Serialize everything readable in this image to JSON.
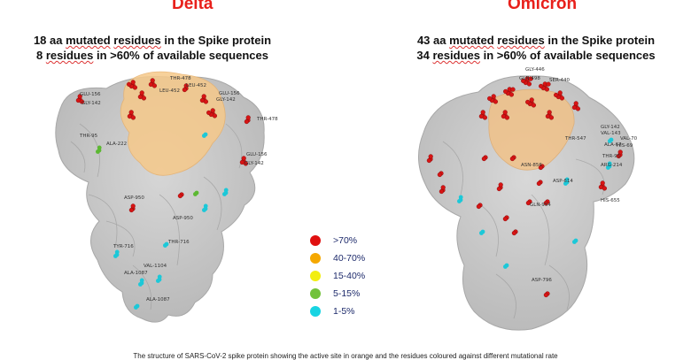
{
  "delta": {
    "title": "Delta",
    "line1_pre": "18 aa ",
    "line1_w1": "mutated",
    "line1_sp": " ",
    "line1_w2": "residues",
    "line1_post": " in the Spike protein",
    "line2_pre": "8 ",
    "line2_w1": "residues",
    "line2_post": " in >60% of available sequences",
    "residue_labels": [
      "GLU-156",
      "GLY-142",
      "THR-478",
      "LEU-452",
      "LEU-452",
      "GLU-156",
      "GLY-142",
      "THR-95",
      "ALA-222",
      "THR-478",
      "GLU-156",
      "GLY-142",
      "ASP-950",
      "ASP-950",
      "THR-716",
      "TYR-716",
      "ALA-1087",
      "VAL-1104",
      "ALA-1087"
    ]
  },
  "omicron": {
    "title": "Omicron",
    "line1_pre": "43 aa ",
    "line1_w1": "mutated",
    "line1_sp": " ",
    "line1_w2": "residues",
    "line1_post": " in the Spike protein",
    "line2_pre": "34 ",
    "line2_w1": "residues",
    "line2_post": " in >60% of available sequences",
    "residue_labels": [
      "GLY-446",
      "GLN-498",
      "SER-440",
      "THR-547",
      "GLY-142",
      "VAL-143",
      "VAL-70",
      "ALA-67",
      "HIS-69",
      "THR-95",
      "ARG-214",
      "ASN-856",
      "ASP-614",
      "GLN-954",
      "HIS-655",
      "ASP-796"
    ]
  },
  "legend": [
    {
      "label": ">70%",
      "color": "#e01010"
    },
    {
      "label": "40-70%",
      "color": "#f5a800"
    },
    {
      "label": "15-40%",
      "color": "#f2ee10"
    },
    {
      "label": "5-15%",
      "color": "#72c23a"
    },
    {
      "label": "1-5%",
      "color": "#18d4e2"
    }
  ],
  "caption": "The structure of SARS-CoV-2 spike protein showing the active site in orange and the residues coloured against different mutational rate"
}
